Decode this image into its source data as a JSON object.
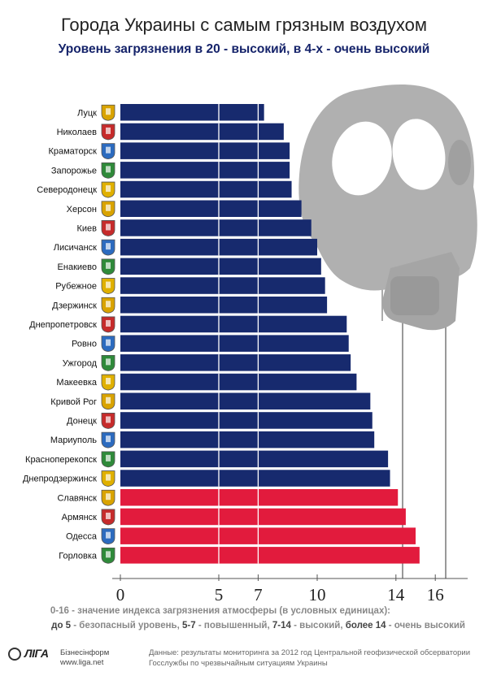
{
  "title": "Города Украины с самым грязным воздухом",
  "subtitle": "Уровень загрязнения в 20 - высокий, в 4-х - очень высокий",
  "legend": {
    "line1": "0-16 - значение индекса загрязнения атмосферы (в условных единицах):",
    "line2_a": "до 5",
    "line2_b": " - безопасный уровень, ",
    "line2_c": "5-7",
    "line2_d": " - повышенный, ",
    "line2_e": "7-14",
    "line2_f": " - высокий, ",
    "line2_g": "более 14",
    "line2_h": " - очень высокий"
  },
  "logo": {
    "brand": "ЛІГА",
    "brand2": "Бізнесінформ",
    "url": "www.liga.net"
  },
  "source": {
    "line1": "Данные: результаты мониторинга за 2012 год Центральной геофизической обсерватории",
    "line2": "Госслужбы по чрезвычайным ситуациям Украины"
  },
  "colors": {
    "high": "#172a6e",
    "very_high": "#e21b3d",
    "mask": "#b0b0b0"
  },
  "chart_data": {
    "type": "bar",
    "orientation": "horizontal",
    "xlim": [
      0,
      16.5
    ],
    "x_ticks": [
      0,
      5,
      7,
      10,
      14,
      16
    ],
    "categories": [
      "Луцк",
      "Николаев",
      "Краматорск",
      "Запорожье",
      "Северодонецк",
      "Херсон",
      "Киев",
      "Лисичанск",
      "Енакиево",
      "Рубежное",
      "Дзержинск",
      "Днепропетровск",
      "Ровно",
      "Ужгород",
      "Макеевка",
      "Кривой Рог",
      "Донецк",
      "Мариуполь",
      "Красноперекопск",
      "Днепродзержинск",
      "Славянск",
      "Армянск",
      "Одесса",
      "Горловка"
    ],
    "values": [
      7.3,
      8.3,
      8.6,
      8.6,
      8.7,
      9.2,
      9.7,
      10.0,
      10.2,
      10.4,
      10.5,
      11.5,
      11.6,
      11.7,
      12.0,
      12.7,
      12.8,
      12.9,
      13.6,
      13.7,
      14.1,
      14.5,
      15.0,
      15.2
    ],
    "series_color_by_level": [
      "high",
      "high",
      "high",
      "high",
      "high",
      "high",
      "high",
      "high",
      "high",
      "high",
      "high",
      "high",
      "high",
      "high",
      "high",
      "high",
      "high",
      "high",
      "high",
      "high",
      "very_high",
      "very_high",
      "very_high",
      "very_high"
    ]
  }
}
